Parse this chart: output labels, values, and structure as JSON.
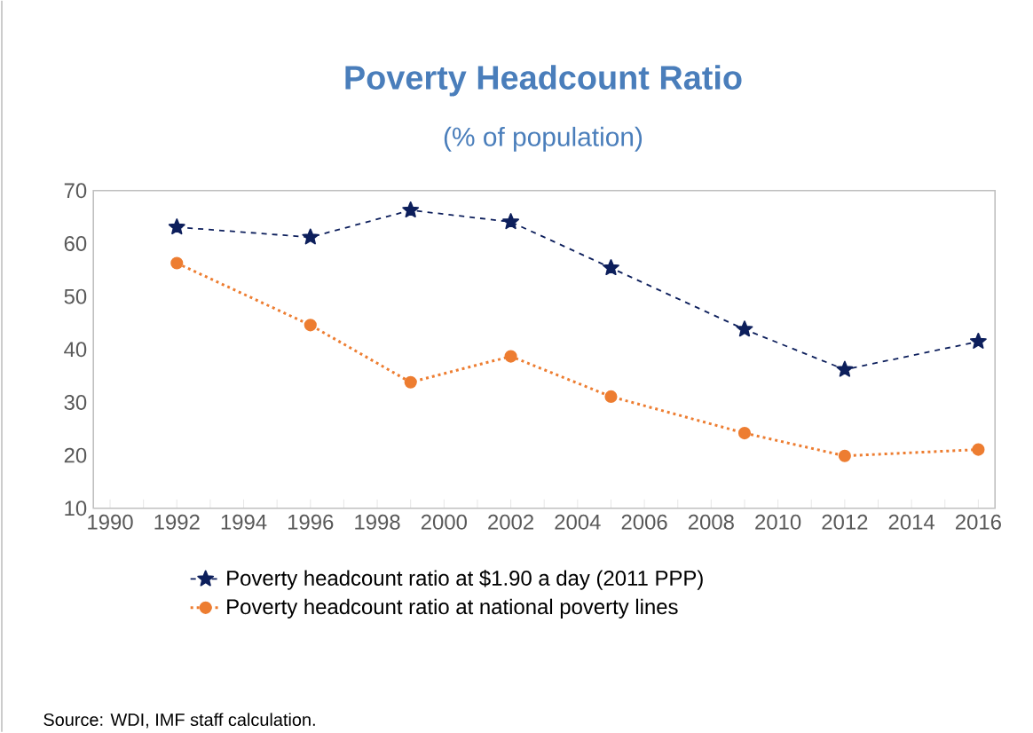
{
  "chart_data": {
    "type": "line",
    "title": "Poverty Headcount Ratio",
    "subtitle": "(% of population)",
    "x": [
      1992,
      1996,
      1999,
      2002,
      2005,
      2009,
      2012,
      2016
    ],
    "series": [
      {
        "name": "Poverty headcount ratio at $1.90 a day (2011 PPP)",
        "color": "#0d1f5c",
        "marker": "star",
        "line_style": "dashed",
        "values": [
          63.1,
          61.2,
          66.3,
          64.1,
          55.4,
          43.8,
          36.2,
          41.5
        ]
      },
      {
        "name": "Poverty headcount ratio at national poverty lines",
        "color": "#ed7d31",
        "marker": "circle",
        "line_style": "dotted",
        "values": [
          56.3,
          44.6,
          33.8,
          38.7,
          31.1,
          24.2,
          19.9,
          21.1
        ]
      }
    ],
    "xlim": [
      1989.5,
      2016.5
    ],
    "xticks": [
      1990,
      {
        "value": 1991,
        "label": null
      },
      1992,
      {
        "value": 1993,
        "label": null
      },
      1994,
      {
        "value": 1995,
        "label": null
      },
      1996,
      {
        "value": 1997,
        "label": null
      },
      1998,
      {
        "value": 1999,
        "label": null
      },
      2000,
      {
        "value": 2001,
        "label": null
      },
      2002,
      {
        "value": 2003,
        "label": null
      },
      2004,
      {
        "value": 2005,
        "label": null
      },
      2006,
      {
        "value": 2007,
        "label": null
      },
      2008,
      {
        "value": 2009,
        "label": null
      },
      2010,
      {
        "value": 2011,
        "label": null
      },
      2012,
      {
        "value": 2013,
        "label": null
      },
      2014,
      {
        "value": 2015,
        "label": null
      },
      2016
    ],
    "ylim": [
      10,
      70
    ],
    "yticks": [
      10,
      20,
      30,
      40,
      50,
      60,
      70
    ],
    "grid": false,
    "legend": "bottom",
    "annotations": [
      "Source: WDI, IMF staff calculation."
    ]
  }
}
